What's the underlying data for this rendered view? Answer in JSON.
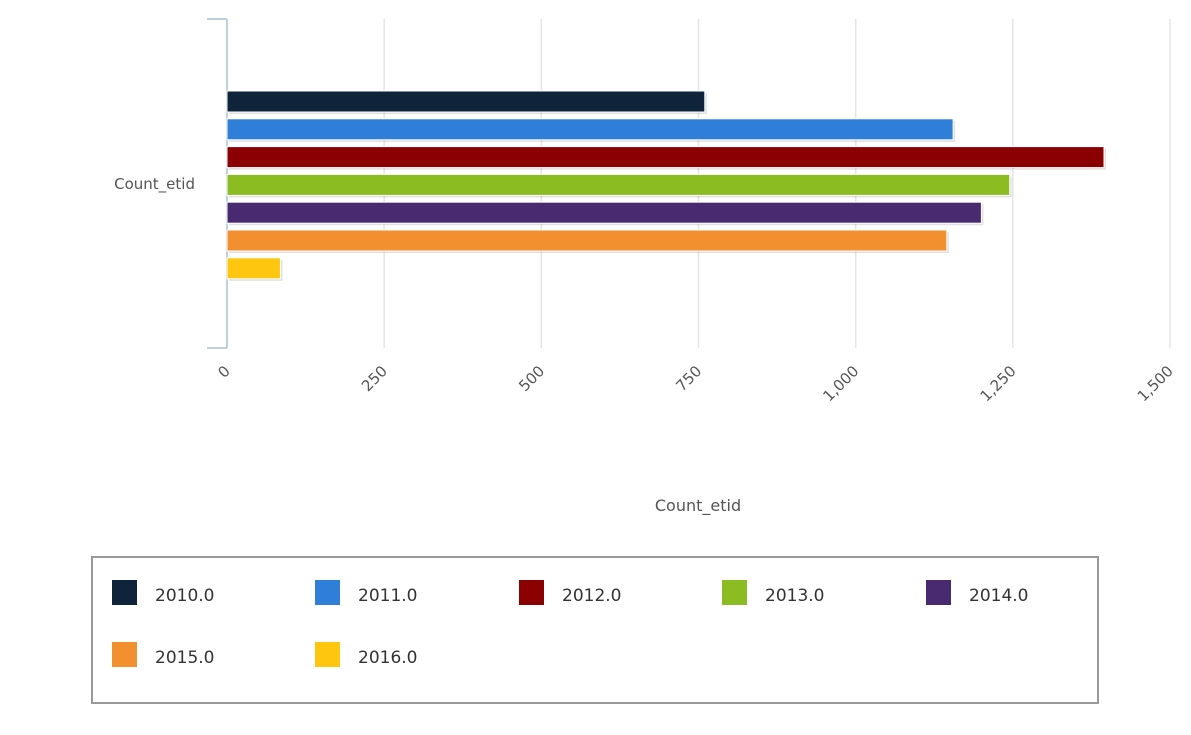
{
  "chart_data": {
    "type": "bar",
    "orientation": "horizontal",
    "title": "",
    "xlabel": "Count_etid",
    "ylabel": "",
    "categories": [
      "Count_etid"
    ],
    "series": [
      {
        "name": "2010.0",
        "color": "#0f243a",
        "values": [
          760
        ]
      },
      {
        "name": "2011.0",
        "color": "#2f7ed8",
        "values": [
          1155
        ]
      },
      {
        "name": "2012.0",
        "color": "#8b0000",
        "values": [
          1395
        ]
      },
      {
        "name": "2013.0",
        "color": "#8bbc21",
        "values": [
          1245
        ]
      },
      {
        "name": "2014.0",
        "color": "#492970",
        "values": [
          1200
        ]
      },
      {
        "name": "2015.0",
        "color": "#f28f2f",
        "values": [
          1145
        ]
      },
      {
        "name": "2016.0",
        "color": "#ffc610",
        "values": [
          85
        ]
      }
    ],
    "xlim": [
      0,
      1500
    ],
    "xticks": [
      "0",
      "250",
      "500",
      "750",
      "1,000",
      "1,250",
      "1,500"
    ],
    "grid": true,
    "legend_position": "bottom"
  }
}
